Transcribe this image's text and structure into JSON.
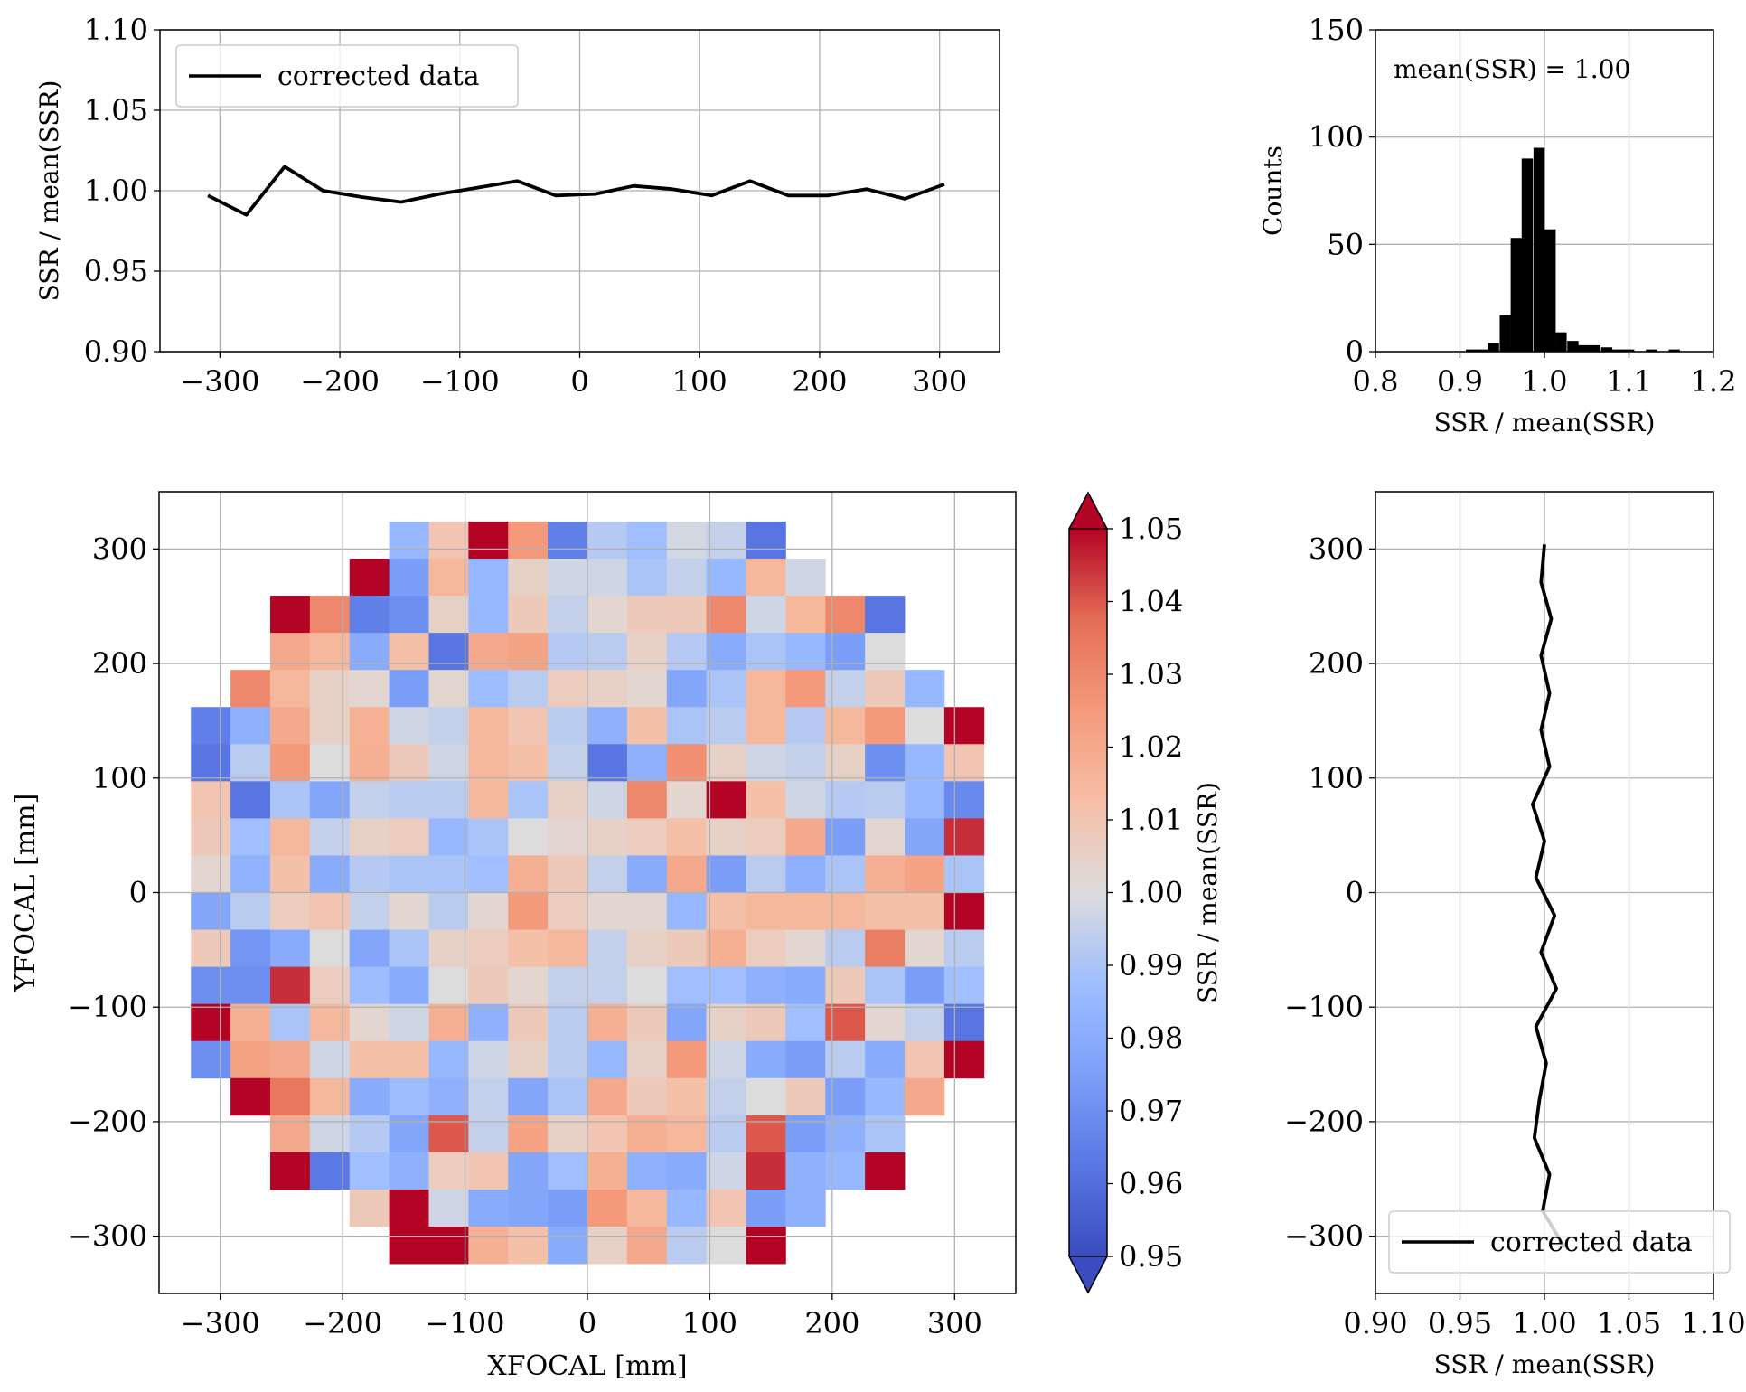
{
  "chart_data": [
    {
      "id": "top-profile",
      "type": "line",
      "title": "",
      "xlabel": "",
      "ylabel": "SSR / mean(SSR)",
      "xlim": [
        -350,
        350
      ],
      "ylim": [
        0.9,
        1.1
      ],
      "xticks": [
        -300,
        -200,
        -100,
        0,
        100,
        200,
        300
      ],
      "xtick_labels": [
        "−300",
        "−200",
        "−100",
        "0",
        "100",
        "200",
        "300"
      ],
      "yticks": [
        0.9,
        0.95,
        1.0,
        1.05,
        1.1
      ],
      "ytick_labels": [
        "0.90",
        "0.95",
        "1.00",
        "1.05",
        "1.10"
      ],
      "grid": true,
      "legend": {
        "placement": "upper-left",
        "entries": [
          "corrected data"
        ]
      },
      "series": [
        {
          "name": "corrected data",
          "color": "#000000",
          "x": [
            -310,
            -278,
            -246,
            -214,
            -181,
            -149,
            -117,
            -84,
            -52,
            -20,
            13,
            45,
            77,
            110,
            142,
            174,
            207,
            239,
            271,
            304
          ],
          "y": [
            0.997,
            0.985,
            1.015,
            1.0,
            0.996,
            0.993,
            0.998,
            1.002,
            1.006,
            0.997,
            0.998,
            1.003,
            1.001,
            0.997,
            1.006,
            0.997,
            0.997,
            1.001,
            0.995,
            1.004
          ]
        }
      ]
    },
    {
      "id": "histogram",
      "type": "bar",
      "title": "",
      "xlabel": "SSR / mean(SSR)",
      "ylabel": "Counts",
      "xlim": [
        0.8,
        1.2
      ],
      "ylim": [
        0,
        150
      ],
      "xticks": [
        0.8,
        0.9,
        1.0,
        1.1,
        1.2
      ],
      "xtick_labels": [
        "0.8",
        "0.9",
        "1.0",
        "1.1",
        "1.2"
      ],
      "yticks": [
        0,
        50,
        100,
        150
      ],
      "ytick_labels": [
        "0",
        "50",
        "100",
        "150"
      ],
      "grid": true,
      "annotation": "mean(SSR) = 1.00",
      "bin_width": 0.0133,
      "bin_starts": [
        0.88,
        0.893,
        0.907,
        0.92,
        0.933,
        0.947,
        0.96,
        0.973,
        0.987,
        1.0,
        1.013,
        1.027,
        1.04,
        1.053,
        1.067,
        1.08,
        1.093,
        1.107,
        1.12,
        1.133,
        1.147,
        1.16,
        1.173,
        1.187
      ],
      "counts": [
        0,
        0,
        1,
        1,
        4,
        17,
        53,
        90,
        95,
        57,
        9,
        5,
        3,
        3,
        2,
        1,
        1,
        0,
        1,
        0,
        1,
        0,
        0,
        0
      ],
      "color": "#000000"
    },
    {
      "id": "focal-plane-map",
      "type": "heatmap",
      "title": "",
      "xlabel": "XFOCAL [mm]",
      "ylabel": "YFOCAL [mm]",
      "xlim": [
        -350,
        350
      ],
      "ylim": [
        -350,
        350
      ],
      "xticks": [
        -300,
        -200,
        -100,
        0,
        100,
        200,
        300
      ],
      "xtick_labels": [
        "−300",
        "−200",
        "−100",
        "0",
        "100",
        "200",
        "300"
      ],
      "yticks": [
        -300,
        -200,
        -100,
        0,
        100,
        200,
        300
      ],
      "ytick_labels": [
        "−300",
        "−200",
        "−100",
        "0",
        "100",
        "200",
        "300"
      ],
      "grid": true,
      "cell_size_mm": 32.4,
      "x_origin_mm": -324,
      "y_top_mm": 324,
      "colorbar": {
        "label": "SSR / mean(SSR)",
        "vmin": 0.95,
        "vmax": 1.05,
        "ticks": [
          0.95,
          0.96,
          0.97,
          0.98,
          0.99,
          1.0,
          1.01,
          1.02,
          1.03,
          1.04,
          1.05
        ],
        "tick_labels": [
          "0.95",
          "0.96",
          "0.97",
          "0.98",
          "0.99",
          "1.00",
          "1.01",
          "1.02",
          "1.03",
          "1.04",
          "1.05"
        ],
        "colormap": "coolwarm",
        "extend": "both"
      },
      "grid_values": [
        [
          null,
          null,
          null,
          null,
          null,
          0.985,
          1.01,
          1.05,
          1.025,
          0.965,
          0.992,
          0.988,
          0.998,
          0.995,
          0.962,
          null,
          null,
          null,
          null,
          null
        ],
        [
          null,
          null,
          null,
          null,
          1.05,
          0.975,
          1.015,
          0.985,
          1.005,
          0.997,
          0.997,
          0.99,
          0.995,
          0.985,
          1.015,
          0.997,
          null,
          null,
          null,
          null
        ],
        [
          null,
          null,
          1.05,
          1.03,
          0.965,
          0.97,
          1.005,
          0.985,
          1.008,
          0.995,
          1.003,
          1.008,
          1.008,
          1.03,
          0.997,
          1.015,
          1.03,
          0.962,
          null,
          null
        ],
        [
          null,
          null,
          1.02,
          1.015,
          0.98,
          1.012,
          0.962,
          1.02,
          1.022,
          0.992,
          0.993,
          1.005,
          0.992,
          0.98,
          0.99,
          0.985,
          0.975,
          1.0,
          null,
          null
        ],
        [
          null,
          1.03,
          1.015,
          1.005,
          1.003,
          0.975,
          1.003,
          0.987,
          0.993,
          1.007,
          1.005,
          1.003,
          0.978,
          0.99,
          1.015,
          1.025,
          0.995,
          1.008,
          0.985,
          null
        ],
        [
          0.965,
          0.982,
          1.02,
          1.005,
          1.017,
          0.997,
          0.995,
          1.015,
          1.01,
          0.993,
          0.982,
          1.012,
          0.99,
          0.993,
          1.015,
          0.992,
          1.015,
          1.025,
          1.0,
          1.05
        ],
        [
          0.962,
          0.993,
          1.025,
          1.0,
          1.018,
          1.008,
          0.997,
          1.015,
          1.012,
          0.995,
          0.962,
          0.982,
          1.028,
          1.005,
          0.997,
          0.995,
          1.005,
          0.97,
          0.985,
          1.01
        ],
        [
          1.01,
          0.962,
          0.99,
          0.978,
          0.995,
          0.993,
          0.993,
          1.015,
          0.99,
          1.005,
          0.997,
          1.03,
          1.003,
          1.05,
          1.012,
          0.997,
          0.992,
          0.993,
          0.985,
          0.968
        ],
        [
          1.008,
          0.988,
          1.015,
          0.995,
          1.005,
          1.007,
          0.985,
          0.99,
          1.0,
          1.003,
          1.005,
          1.007,
          1.012,
          1.005,
          1.007,
          1.02,
          0.975,
          1.003,
          0.978,
          1.045
        ],
        [
          1.003,
          0.983,
          1.012,
          0.98,
          0.992,
          0.99,
          0.99,
          0.988,
          1.018,
          1.008,
          0.995,
          0.98,
          1.02,
          0.975,
          0.993,
          0.982,
          0.99,
          1.018,
          1.022,
          0.99
        ],
        [
          0.978,
          0.993,
          1.007,
          1.01,
          0.995,
          1.003,
          0.993,
          1.003,
          1.025,
          1.007,
          1.003,
          1.003,
          0.985,
          1.012,
          1.015,
          1.015,
          1.015,
          1.012,
          1.012,
          1.05
        ],
        [
          1.008,
          0.972,
          0.98,
          1.0,
          0.978,
          0.99,
          1.005,
          1.007,
          1.012,
          1.015,
          0.995,
          1.005,
          1.008,
          1.018,
          1.007,
          1.003,
          0.993,
          1.033,
          1.003,
          0.993
        ],
        [
          0.97,
          0.97,
          1.045,
          1.007,
          0.987,
          0.98,
          1.0,
          1.008,
          1.003,
          0.995,
          0.995,
          1.0,
          0.988,
          0.988,
          0.982,
          0.98,
          1.008,
          0.99,
          0.975,
          0.988
        ],
        [
          1.05,
          1.018,
          0.99,
          1.015,
          1.003,
          0.997,
          1.018,
          0.982,
          1.008,
          0.993,
          1.018,
          1.008,
          0.978,
          1.005,
          1.008,
          0.988,
          1.04,
          1.003,
          0.995,
          0.962
        ],
        [
          0.97,
          1.022,
          1.02,
          0.997,
          1.012,
          1.012,
          0.985,
          0.997,
          1.005,
          0.993,
          0.985,
          1.005,
          1.025,
          0.997,
          0.98,
          0.975,
          0.993,
          0.98,
          1.01,
          1.05
        ],
        [
          null,
          1.05,
          1.035,
          1.015,
          0.98,
          0.987,
          0.982,
          0.995,
          0.978,
          0.99,
          1.02,
          1.008,
          1.012,
          0.995,
          1.0,
          1.008,
          0.975,
          0.985,
          1.02,
          null
        ],
        [
          null,
          null,
          1.02,
          0.997,
          0.992,
          0.978,
          1.04,
          0.995,
          1.022,
          1.005,
          1.01,
          1.018,
          1.015,
          0.993,
          1.04,
          0.975,
          0.982,
          0.99,
          null,
          null
        ],
        [
          null,
          null,
          1.05,
          0.963,
          0.988,
          0.982,
          1.007,
          1.01,
          0.978,
          0.988,
          1.018,
          0.982,
          0.98,
          0.997,
          1.045,
          0.982,
          0.985,
          1.05,
          null,
          null
        ],
        [
          null,
          null,
          null,
          null,
          1.008,
          1.05,
          0.997,
          0.98,
          0.978,
          0.975,
          1.025,
          1.015,
          0.985,
          1.01,
          0.975,
          0.982,
          null,
          null,
          null,
          null
        ],
        [
          null,
          null,
          null,
          null,
          null,
          1.05,
          1.05,
          1.018,
          1.012,
          0.98,
          1.005,
          1.02,
          0.993,
          1.0,
          1.05,
          null,
          null,
          null,
          null,
          null
        ]
      ]
    },
    {
      "id": "right-profile",
      "type": "line",
      "title": "",
      "xlabel": "SSR / mean(SSR)",
      "ylabel": "",
      "xlim": [
        0.9,
        1.1
      ],
      "ylim": [
        -350,
        350
      ],
      "xticks": [
        0.9,
        0.95,
        1.0,
        1.05,
        1.1
      ],
      "xtick_labels": [
        "0.90",
        "0.95",
        "1.00",
        "1.05",
        "1.10"
      ],
      "yticks": [
        -300,
        -200,
        -100,
        0,
        100,
        200,
        300
      ],
      "ytick_labels": [
        "−300",
        "−200",
        "−100",
        "0",
        "100",
        "200",
        "300"
      ],
      "grid": true,
      "legend": {
        "placement": "lower-right",
        "entries": [
          "corrected data"
        ]
      },
      "series": [
        {
          "name": "corrected data",
          "color": "#000000",
          "x": [
            1.012,
            0.999,
            1.003,
            0.994,
            0.997,
            1.001,
            0.995,
            1.007,
            0.998,
            1.006,
            0.995,
            1.0,
            0.993,
            1.003,
            0.998,
            1.003,
            0.998,
            1.004,
            0.998,
            1.0
          ],
          "y": [
            -310,
            -278,
            -246,
            -214,
            -181,
            -149,
            -117,
            -84,
            -52,
            -20,
            13,
            45,
            77,
            110,
            142,
            174,
            207,
            239,
            271,
            304
          ]
        }
      ]
    }
  ]
}
